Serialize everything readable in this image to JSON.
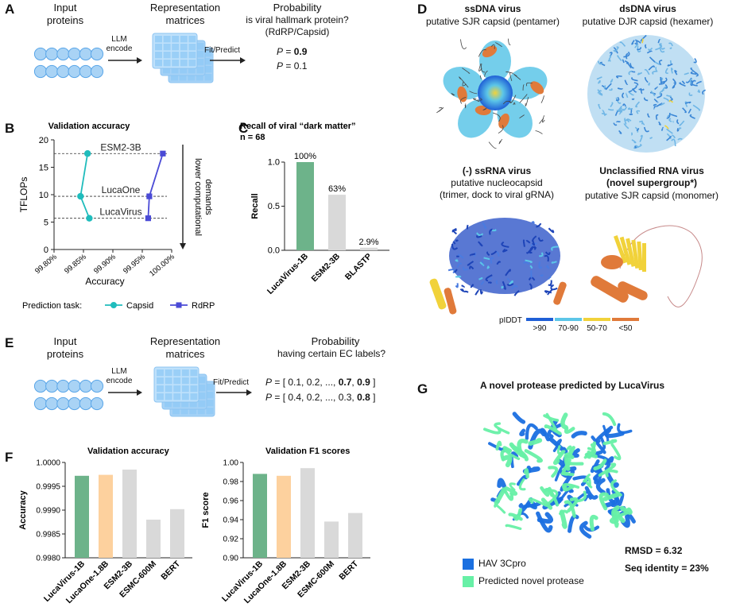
{
  "panel_a": {
    "label": "A",
    "input_title": "Input\nproteins",
    "llm": "LLM\nencode",
    "rep_title": "Representation\nmatrices",
    "fit": "Fit/Predict",
    "prob_title": "Probability",
    "prob_q": "is viral hallmark protein?\n(RdRP/Capsid)",
    "p1_prefix": "P",
    "p1_eq": " = ",
    "p1_val": "0.9",
    "p2_prefix": "P",
    "p2_eq": " = ",
    "p2_val": "0.1"
  },
  "panel_b": {
    "label": "B"
  },
  "panel_c": {
    "label": "C"
  },
  "panel_d": {
    "label": "D",
    "s1_title": "ssDNA virus",
    "s1_sub": "putative SJR capsid (pentamer)",
    "s2_title": "dsDNA virus",
    "s2_sub": "putative DJR capsid (hexamer)",
    "s3_title": "(-) ssRNA virus",
    "s3_sub": "putative nucleocapsid\n(trimer, dock to viral gRNA)",
    "s4_title": "Unclassified RNA virus\n(novel supergroup*)",
    "s4_sub": "putative SJR capsid (monomer)",
    "plddt_label": "pIDDT",
    "plddt_bins": [
      ">90",
      "70-90",
      "50-70",
      "<50"
    ],
    "plddt_colors": [
      "#1f5fd6",
      "#5cc6e8",
      "#f1d23a",
      "#e07a3a"
    ]
  },
  "panel_e": {
    "label": "E",
    "input_title": "Input\nproteins",
    "llm": "LLM\nencode",
    "rep_title": "Representation\nmatrices",
    "fit": "Fit/Predict",
    "prob_title": "Probability",
    "prob_q": "having certain EC labels?",
    "p1_prefix": "P",
    "p1_body": " = [ 0.1, 0.2, ..., ",
    "p1_bold": "0.7",
    "p1_sep": ", ",
    "p1_bold2": "0.9",
    "p1_end": " ]",
    "p2_prefix": "P",
    "p2_body": " = [ 0.4, 0.2, ..., 0.3, ",
    "p2_bold": "0.8",
    "p2_end": " ]"
  },
  "panel_f": {
    "label": "F"
  },
  "panel_g": {
    "label": "G",
    "title": "A novel protease predicted by LucaVirus",
    "rmsd": "RMSD = 6.32",
    "seqid": "Seq identity = 23%",
    "legend": [
      {
        "name": "HAV 3Cpro",
        "color": "#1a6fe0"
      },
      {
        "name": "Predicted novel protease",
        "color": "#67f0a6"
      }
    ]
  },
  "chart_data": [
    {
      "id": "B",
      "type": "line",
      "title": "Validation accuracy",
      "xlabel": "Accuracy",
      "ylabel": "TFLOPs",
      "xlim": [
        99.8,
        100.0
      ],
      "ylim": [
        0,
        20
      ],
      "xticks": [
        "99.80%",
        "99.85%",
        "99.90%",
        "99.95%",
        "100.00%"
      ],
      "yticks": [
        "0",
        "5",
        "10",
        "15",
        "20"
      ],
      "series": [
        {
          "name": "Capsid",
          "color": "#1fbcbc",
          "marker": "circle",
          "points": [
            [
              99.857,
              17.5
            ],
            [
              99.845,
              9.7
            ],
            [
              99.86,
              5.7
            ]
          ]
        },
        {
          "name": "RdRP",
          "color": "#4a4ad6",
          "marker": "square",
          "points": [
            [
              99.985,
              17.5
            ],
            [
              99.962,
              9.7
            ],
            [
              99.96,
              5.7
            ]
          ]
        }
      ],
      "ref_lines": [
        {
          "label": "ESM2-3B",
          "y": 17.5
        },
        {
          "label": "LucaOne",
          "y": 9.7
        },
        {
          "label": "LucaVirus",
          "y": 5.7
        }
      ],
      "arrow_label": "lower computational\ndemands",
      "legend_title": "Prediction task:"
    },
    {
      "id": "C",
      "type": "bar",
      "title": "Recall of viral “dark matter”",
      "subtitle": "n = 68",
      "ylabel": "Recall",
      "ylim": [
        0,
        1.0
      ],
      "yticks": [
        "0.0",
        "0.5",
        "1.0"
      ],
      "categories": [
        "LucaVirus-1B",
        "ESM2-3B",
        "BLASTP"
      ],
      "values": [
        1.0,
        0.63,
        0.029
      ],
      "data_labels": [
        "100%",
        "63%",
        "2.9%"
      ],
      "colors": [
        "#6db38a",
        "#d9d9d9",
        "#d9d9d9"
      ]
    },
    {
      "id": "F1",
      "type": "bar",
      "title": "Validation accuracy",
      "ylabel": "Accuracy",
      "ylim": [
        0.998,
        1.0
      ],
      "yticks": [
        "0.9980",
        "0.9985",
        "0.9990",
        "0.9995",
        "1.0000"
      ],
      "categories": [
        "LucaVirus-1B",
        "LucaOne-1.8B",
        "ESM2-3B",
        "ESMC-600M",
        "BERT"
      ],
      "values": [
        0.99972,
        0.99974,
        0.99985,
        0.9988,
        0.99902
      ],
      "colors": [
        "#6db38a",
        "#fdd19e",
        "#d9d9d9",
        "#d9d9d9",
        "#d9d9d9"
      ]
    },
    {
      "id": "F2",
      "type": "bar",
      "title": "Validation F1 scores",
      "ylabel": "F1 score",
      "ylim": [
        0.9,
        1.0
      ],
      "yticks": [
        "0.90",
        "0.92",
        "0.94",
        "0.96",
        "0.98",
        "1.00"
      ],
      "categories": [
        "LucaVirus-1B",
        "LucaOne-1.8B",
        "ESM2-3B",
        "ESMC-600M",
        "BERT"
      ],
      "values": [
        0.988,
        0.986,
        0.994,
        0.938,
        0.947
      ],
      "colors": [
        "#6db38a",
        "#fdd19e",
        "#d9d9d9",
        "#d9d9d9",
        "#d9d9d9"
      ]
    }
  ]
}
